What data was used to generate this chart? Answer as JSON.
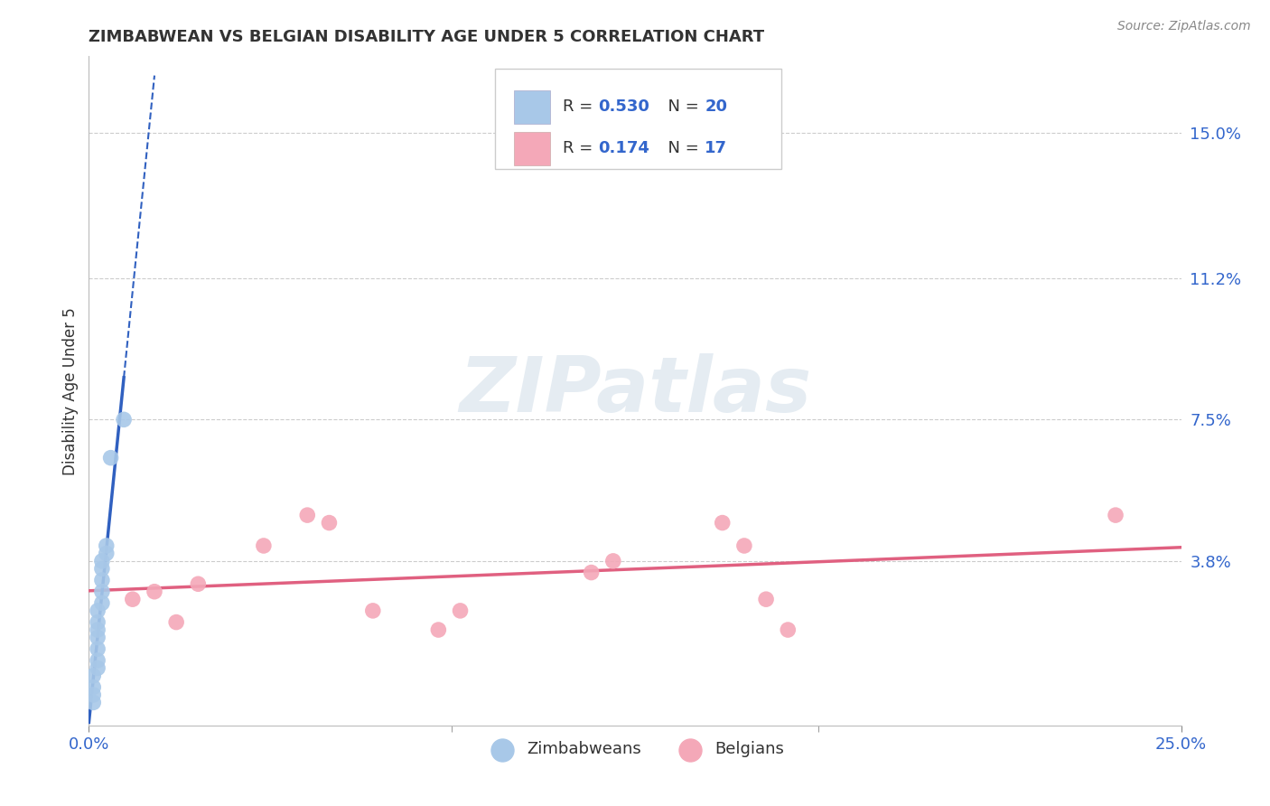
{
  "title": "ZIMBABWEAN VS BELGIAN DISABILITY AGE UNDER 5 CORRELATION CHART",
  "source": "Source: ZipAtlas.com",
  "ylabel": "Disability Age Under 5",
  "ytick_labels": [
    "3.8%",
    "7.5%",
    "11.2%",
    "15.0%"
  ],
  "ytick_values": [
    0.038,
    0.075,
    0.112,
    0.15
  ],
  "xlim": [
    0.0,
    0.25
  ],
  "ylim": [
    -0.005,
    0.17
  ],
  "r_zimbabwe": 0.53,
  "n_zimbabwe": 20,
  "r_belgium": 0.174,
  "n_belgium": 17,
  "color_zimbabwe": "#a8c8e8",
  "color_belgium": "#f4a8b8",
  "color_line_zimbabwe": "#3060c0",
  "color_line_belgium": "#e06080",
  "zimbabwe_x": [
    0.001,
    0.001,
    0.001,
    0.001,
    0.002,
    0.002,
    0.002,
    0.002,
    0.002,
    0.002,
    0.002,
    0.003,
    0.003,
    0.003,
    0.003,
    0.003,
    0.004,
    0.004,
    0.005,
    0.008
  ],
  "zimbabwe_y": [
    0.001,
    0.003,
    0.005,
    0.008,
    0.01,
    0.012,
    0.015,
    0.018,
    0.02,
    0.022,
    0.025,
    0.027,
    0.03,
    0.033,
    0.036,
    0.038,
    0.04,
    0.042,
    0.065,
    0.075
  ],
  "belgium_x": [
    0.01,
    0.015,
    0.02,
    0.025,
    0.04,
    0.05,
    0.055,
    0.065,
    0.08,
    0.085,
    0.115,
    0.12,
    0.145,
    0.15,
    0.155,
    0.16,
    0.235
  ],
  "belgium_y": [
    0.028,
    0.03,
    0.022,
    0.032,
    0.042,
    0.05,
    0.048,
    0.025,
    0.02,
    0.025,
    0.035,
    0.038,
    0.048,
    0.042,
    0.028,
    0.02,
    0.05
  ],
  "background_color": "#ffffff",
  "grid_color": "#cccccc",
  "watermark_text": "ZIPatlas"
}
